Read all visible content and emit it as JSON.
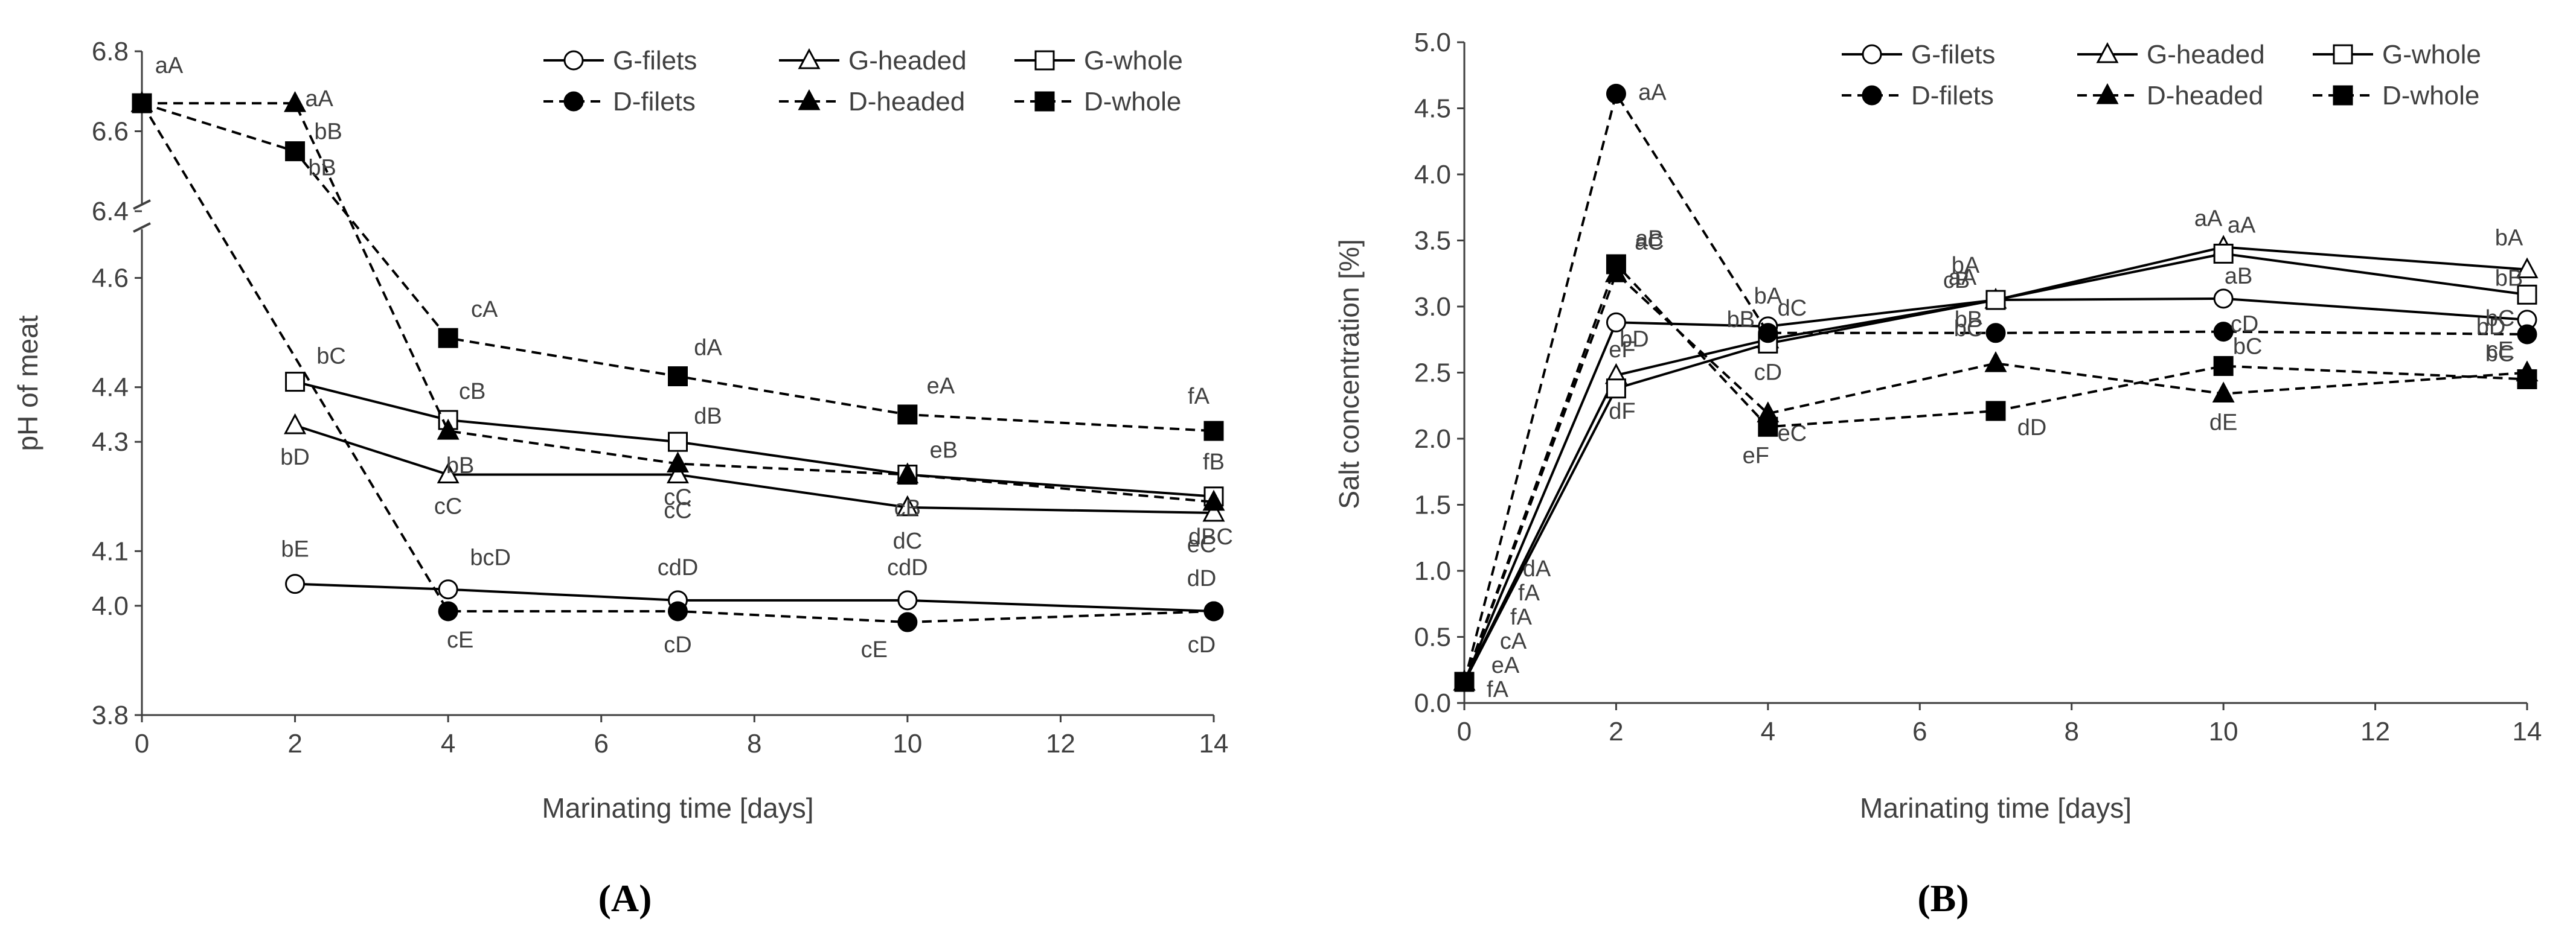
{
  "figure": {
    "panel_labels": [
      "(A)",
      "(B)"
    ]
  },
  "legend": {
    "entries": [
      {
        "name": "G-filets",
        "marker": "circle",
        "fill": "open",
        "dash": "solid"
      },
      {
        "name": "G-headed",
        "marker": "triangle",
        "fill": "open",
        "dash": "solid"
      },
      {
        "name": "G-whole",
        "marker": "square",
        "fill": "open",
        "dash": "solid"
      },
      {
        "name": "D-filets",
        "marker": "circle",
        "fill": "filled",
        "dash": "dashed"
      },
      {
        "name": "D-headed",
        "marker": "triangle",
        "fill": "filled",
        "dash": "dashed"
      },
      {
        "name": "D-whole",
        "marker": "square",
        "fill": "filled",
        "dash": "dashed"
      }
    ]
  },
  "colors": {
    "axis": "#404040",
    "line": "#000000",
    "text": "#404040"
  },
  "chart_data": [
    {
      "type": "line",
      "panel": "(A)",
      "title": "",
      "xlabel": "Marinating time [days]",
      "ylabel": "pH of meat",
      "xlim": [
        0,
        14
      ],
      "x_ticks": [
        0,
        2,
        4,
        6,
        8,
        10,
        12,
        14
      ],
      "y_break": true,
      "y_upper_range": [
        6.4,
        6.8
      ],
      "y_upper_ticks": [
        6.4,
        6.6,
        6.8
      ],
      "y_upper_tick_labels": [
        "6.4",
        "6.6",
        "6.8"
      ],
      "y_lower_range": [
        3.8,
        4.7
      ],
      "y_lower_ticks": [
        3.8,
        4.0,
        4.1,
        4.3,
        4.4,
        4.6
      ],
      "y_lower_tick_labels": [
        "3.8",
        "4.0",
        "4.1",
        "4.3",
        "4.4",
        "4.6"
      ],
      "series": [
        {
          "name": "G-filets",
          "x": [
            2,
            4,
            7,
            10,
            14
          ],
          "values": [
            4.04,
            4.03,
            4.01,
            4.01,
            3.99
          ],
          "labels": [
            "bE",
            "bcD",
            "cdD",
            "cdD",
            "dD"
          ]
        },
        {
          "name": "G-headed",
          "x": [
            2,
            4,
            7,
            10,
            14
          ],
          "values": [
            4.33,
            4.24,
            4.24,
            4.18,
            4.17
          ],
          "labels": [
            "bD",
            "cC",
            "cC",
            "dC",
            "eC"
          ]
        },
        {
          "name": "G-whole",
          "x": [
            2,
            4,
            7,
            10,
            14
          ],
          "values": [
            4.41,
            4.34,
            4.3,
            4.24,
            4.2
          ],
          "labels": [
            "bC",
            "cB",
            "dB",
            "eB",
            "fB"
          ]
        },
        {
          "name": "D-filets",
          "x": [
            0,
            4,
            7,
            10,
            14
          ],
          "values": [
            6.67,
            3.99,
            3.99,
            3.97,
            3.99
          ],
          "labels": [
            "",
            "cE",
            "cD",
            "cE",
            "cD"
          ]
        },
        {
          "name": "D-headed",
          "x": [
            0,
            2,
            4,
            7,
            10,
            14
          ],
          "values": [
            6.67,
            6.67,
            4.32,
            4.26,
            4.24,
            4.19
          ],
          "labels": [
            "",
            "aA",
            "bB",
            "cC",
            "cB",
            "dBC"
          ]
        },
        {
          "name": "D-whole",
          "x": [
            0,
            2,
            4,
            7,
            10,
            14
          ],
          "values": [
            6.67,
            6.55,
            4.49,
            4.42,
            4.35,
            4.32
          ],
          "labels": [
            "aA",
            "bB",
            "cA",
            "dA",
            "eA",
            "fA"
          ]
        }
      ],
      "extra_labels": [
        "bB"
      ]
    },
    {
      "type": "line",
      "panel": "(B)",
      "title": "",
      "xlabel": "Marinating time [days]",
      "ylabel": "Salt concentration [%]",
      "xlim": [
        0,
        14
      ],
      "x_ticks": [
        0,
        2,
        4,
        6,
        8,
        10,
        12,
        14
      ],
      "ylim": [
        0,
        5
      ],
      "y_ticks": [
        0,
        0.5,
        1,
        1.5,
        2,
        2.5,
        3,
        3.5,
        4,
        4.5,
        5
      ],
      "y_tick_labels": [
        "0.0",
        "0.5",
        "1.0",
        "1.5",
        "2.0",
        "2.5",
        "3.0",
        "3.5",
        "4.0",
        "4.5",
        "5.0"
      ],
      "series": [
        {
          "name": "G-filets",
          "x": [
            0,
            2,
            4,
            7,
            10,
            14
          ],
          "values": [
            0.16,
            2.88,
            2.85,
            3.05,
            3.06,
            2.9
          ],
          "labels": [
            "",
            "bD",
            "bA",
            "aA",
            "aB",
            "bC"
          ]
        },
        {
          "name": "G-headed",
          "x": [
            0,
            2,
            4,
            7,
            10,
            14
          ],
          "values": [
            0.16,
            2.48,
            2.75,
            3.05,
            3.45,
            3.28
          ],
          "labels": [
            "",
            "eF",
            "dC",
            "bA",
            "aA",
            "bA"
          ]
        },
        {
          "name": "G-whole",
          "x": [
            0,
            2,
            4,
            7,
            10,
            14
          ],
          "values": [
            0.16,
            2.38,
            2.72,
            3.05,
            3.4,
            3.09
          ],
          "labels": [
            "",
            "dF",
            "cD",
            "cB",
            "aA",
            "bB"
          ]
        },
        {
          "name": "D-filets",
          "x": [
            0,
            2,
            4,
            7,
            10,
            14
          ],
          "values": [
            0.16,
            4.61,
            2.8,
            2.8,
            2.81,
            2.79
          ],
          "labels": [
            "",
            "aA",
            "bB",
            "bB",
            "cD",
            "bD"
          ]
        },
        {
          "name": "D-headed",
          "x": [
            0,
            2,
            4,
            7,
            10,
            14
          ],
          "values": [
            0.16,
            3.25,
            2.19,
            2.57,
            2.34,
            2.5
          ],
          "labels": [
            "",
            "aC",
            "eC",
            "bC",
            "dE",
            "cE"
          ]
        },
        {
          "name": "D-whole",
          "x": [
            0,
            2,
            4,
            7,
            10,
            14
          ],
          "values": [
            0.16,
            3.32,
            2.09,
            2.21,
            2.55,
            2.45
          ],
          "labels": [
            "",
            "aB",
            "eF",
            "dD",
            "bC",
            "bC"
          ]
        }
      ],
      "origin_labels": [
        "dA",
        "fA",
        "fA",
        "cA",
        "eA",
        "fA"
      ]
    }
  ]
}
